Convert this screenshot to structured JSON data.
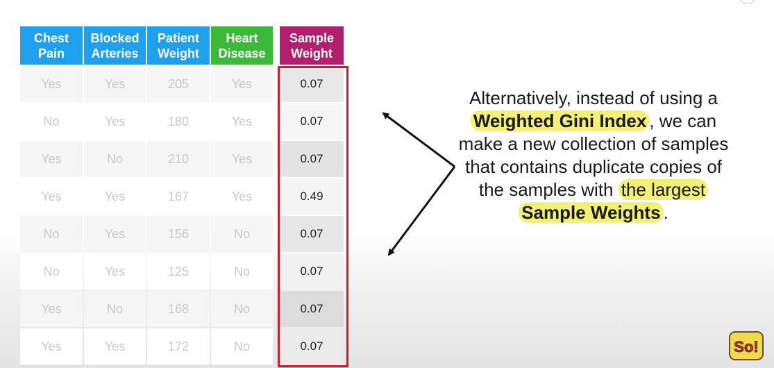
{
  "headers": [
    {
      "label": "Chest Pain",
      "color": "#1fa0ec"
    },
    {
      "label": "Blocked Arteries",
      "color": "#1fa0ec"
    },
    {
      "label": "Patient Weight",
      "color": "#1fa0ec"
    },
    {
      "label": "Heart Disease",
      "color": "#3cb83a"
    },
    {
      "label": "Sample Weight",
      "color": "#b11f6e"
    }
  ],
  "rows": [
    [
      "Yes",
      "Yes",
      "205",
      "Yes",
      "0.07"
    ],
    [
      "No",
      "Yes",
      "180",
      "Yes",
      "0.07"
    ],
    [
      "Yes",
      "No",
      "210",
      "Yes",
      "0.07"
    ],
    [
      "Yes",
      "Yes",
      "167",
      "Yes",
      "0.49"
    ],
    [
      "No",
      "Yes",
      "156",
      "No",
      "0.07"
    ],
    [
      "No",
      "Yes",
      "125",
      "No",
      "0.07"
    ],
    [
      "Yes",
      "No",
      "168",
      "No",
      "0.07"
    ],
    [
      "Yes",
      "Yes",
      "172",
      "No",
      "0.07"
    ]
  ],
  "explanation": {
    "part1": "Alternatively, instead of using a ",
    "highlight1": "Weighted Gini Index",
    "part2": ", we can make a new collection of samples that contains duplicate copies of the samples with ",
    "highlight2a": "the largest",
    "highlight2b": "Sample Weights",
    "part3": "."
  },
  "logo": {
    "text": "So!",
    "icon": "statquest-logo-icon"
  },
  "colors": {
    "highlight": "#f3f07a",
    "box": "#c8202a"
  }
}
